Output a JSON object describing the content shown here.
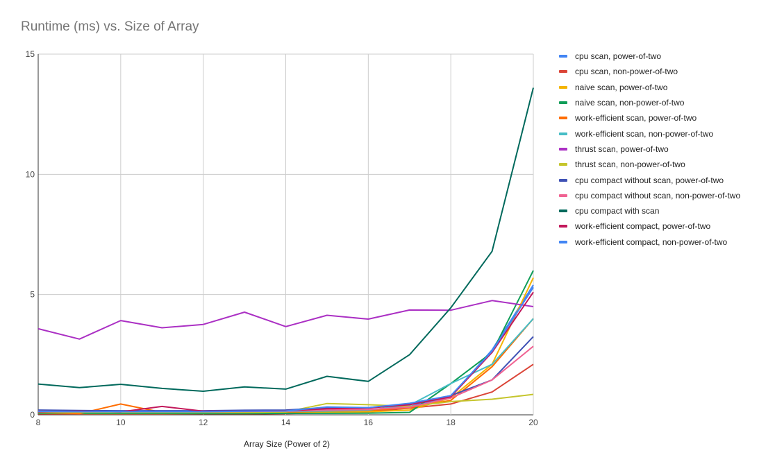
{
  "chart_data": {
    "type": "line",
    "title": "Runtime (ms) vs. Size of Array",
    "xlabel": "Array Size (Power of 2)",
    "ylabel": "",
    "x": [
      8,
      9,
      10,
      11,
      12,
      13,
      14,
      15,
      16,
      17,
      18,
      19,
      20
    ],
    "xlim": [
      8,
      20
    ],
    "ylim": [
      0,
      15
    ],
    "x_ticks": [
      8,
      10,
      12,
      14,
      16,
      18,
      20
    ],
    "y_ticks": [
      0,
      5,
      10,
      15
    ],
    "grid": true,
    "legend_position": "right",
    "series": [
      {
        "name": "cpu scan, power-of-two",
        "color": "#4285f4",
        "values": [
          0.05,
          0.04,
          0.05,
          0.05,
          0.06,
          0.06,
          0.07,
          0.1,
          0.15,
          0.35,
          0.75,
          2.7,
          5.4
        ]
      },
      {
        "name": "cpu scan, non-power-of-two",
        "color": "#db4437",
        "values": [
          0.04,
          0.03,
          0.03,
          0.03,
          0.04,
          0.04,
          0.05,
          0.08,
          0.12,
          0.28,
          0.45,
          0.95,
          2.1
        ]
      },
      {
        "name": "naive scan, power-of-two",
        "color": "#f4b400",
        "values": [
          0.1,
          0.08,
          0.08,
          0.07,
          0.08,
          0.08,
          0.09,
          0.1,
          0.12,
          0.2,
          0.7,
          2.1,
          5.7
        ]
      },
      {
        "name": "naive scan, non-power-of-two",
        "color": "#0f9d58",
        "values": [
          0.06,
          0.05,
          0.05,
          0.05,
          0.05,
          0.05,
          0.06,
          0.06,
          0.07,
          0.1,
          1.3,
          2.6,
          6.0
        ]
      },
      {
        "name": "work-efficient scan, power-of-two",
        "color": "#ff6d00",
        "values": [
          0.1,
          0.05,
          0.45,
          0.1,
          0.1,
          0.1,
          0.12,
          0.15,
          0.18,
          0.3,
          0.6,
          2.0,
          4.0
        ]
      },
      {
        "name": "work-efficient scan, non-power-of-two",
        "color": "#46bdc6",
        "values": [
          0.12,
          0.12,
          0.14,
          0.12,
          0.13,
          0.13,
          0.14,
          0.16,
          0.2,
          0.4,
          1.3,
          2.1,
          4.0
        ]
      },
      {
        "name": "thrust scan, power-of-two",
        "color": "#ab30c4",
        "values": [
          3.58,
          3.15,
          3.92,
          3.62,
          3.76,
          4.27,
          3.67,
          4.14,
          3.98,
          4.36,
          4.35,
          4.75,
          4.5
        ]
      },
      {
        "name": "thrust scan, non-power-of-two",
        "color": "#c5c52c",
        "values": [
          0.1,
          0.1,
          0.1,
          0.1,
          0.1,
          0.11,
          0.12,
          0.47,
          0.42,
          0.35,
          0.55,
          0.65,
          0.85
        ]
      },
      {
        "name": "cpu compact without scan, power-of-two",
        "color": "#3f51b5",
        "values": [
          0.2,
          0.18,
          0.17,
          0.17,
          0.17,
          0.19,
          0.2,
          0.3,
          0.3,
          0.45,
          0.8,
          1.45,
          3.25
        ]
      },
      {
        "name": "cpu compact without scan, non-power-of-two",
        "color": "#f06292",
        "values": [
          0.15,
          0.13,
          0.13,
          0.13,
          0.13,
          0.14,
          0.15,
          0.2,
          0.22,
          0.32,
          0.7,
          1.45,
          2.85
        ]
      },
      {
        "name": "cpu compact with scan",
        "color": "#00695c",
        "values": [
          1.28,
          1.13,
          1.27,
          1.1,
          0.98,
          1.16,
          1.07,
          1.6,
          1.39,
          2.5,
          4.45,
          6.8,
          13.6
        ]
      },
      {
        "name": "work-efficient compact, power-of-two",
        "color": "#c2185b",
        "values": [
          0.12,
          0.15,
          0.12,
          0.35,
          0.15,
          0.15,
          0.17,
          0.25,
          0.28,
          0.42,
          0.75,
          2.6,
          5.1
        ]
      },
      {
        "name": "work-efficient compact, non-power-of-two",
        "color": "#4285f4",
        "values": [
          0.14,
          0.13,
          0.13,
          0.13,
          0.13,
          0.15,
          0.16,
          0.33,
          0.3,
          0.48,
          0.8,
          2.65,
          5.3
        ]
      }
    ]
  }
}
